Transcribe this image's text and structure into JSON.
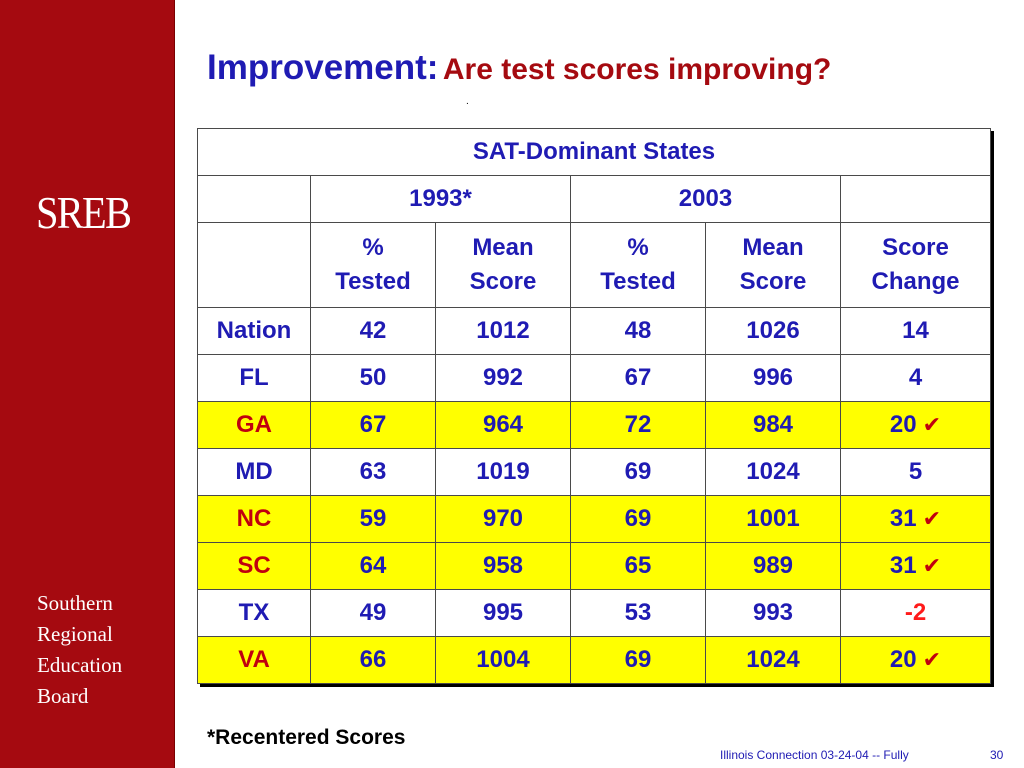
{
  "sidebar": {
    "logo": "SREB",
    "org_lines": [
      "Southern",
      "Regional",
      "Education",
      "Board"
    ]
  },
  "title": {
    "main": "Improvement:",
    "sub": "Are test scores improving?",
    "dot": "."
  },
  "table": {
    "caption": "SAT-Dominant States",
    "years": [
      "1993*",
      "2003"
    ],
    "headers": [
      [
        "%",
        "Tested"
      ],
      [
        "Mean",
        "Score"
      ],
      [
        "%",
        "Tested"
      ],
      [
        "Mean",
        "Score"
      ],
      [
        "Score",
        "Change"
      ]
    ],
    "rows": [
      {
        "state": "Nation",
        "t93": "42",
        "m93": "1012",
        "t03": "48",
        "m03": "1026",
        "change": "14",
        "highlight": false,
        "check": false,
        "negative": false
      },
      {
        "state": "FL",
        "t93": "50",
        "m93": "992",
        "t03": "67",
        "m03": "996",
        "change": "4",
        "highlight": false,
        "check": false,
        "negative": false
      },
      {
        "state": "GA",
        "t93": "67",
        "m93": "964",
        "t03": "72",
        "m03": "984",
        "change": "20",
        "highlight": true,
        "check": true,
        "negative": false
      },
      {
        "state": "MD",
        "t93": "63",
        "m93": "1019",
        "t03": "69",
        "m03": "1024",
        "change": "5",
        "highlight": false,
        "check": false,
        "negative": false
      },
      {
        "state": "NC",
        "t93": "59",
        "m93": "970",
        "t03": "69",
        "m03": "1001",
        "change": "31",
        "highlight": true,
        "check": true,
        "negative": false
      },
      {
        "state": "SC",
        "t93": "64",
        "m93": "958",
        "t03": "65",
        "m03": "989",
        "change": "31",
        "highlight": true,
        "check": true,
        "negative": false
      },
      {
        "state": "TX",
        "t93": "49",
        "m93": "995",
        "t03": "53",
        "m03": "993",
        "change": "-2",
        "highlight": false,
        "check": false,
        "negative": true
      },
      {
        "state": "VA",
        "t93": "66",
        "m93": "1004",
        "t03": "69",
        "m03": "1024",
        "change": "20",
        "highlight": true,
        "check": true,
        "negative": false
      }
    ],
    "check_icon": "checkmark-icon",
    "highlight_color": "#ffff00",
    "state_highlight_color": "#c0000f",
    "text_color": "#1f1bb3"
  },
  "footnote": "*Recentered Scores",
  "footer": {
    "text": "Illinois Connection 03-24-04 -- Fully",
    "page": "30"
  }
}
